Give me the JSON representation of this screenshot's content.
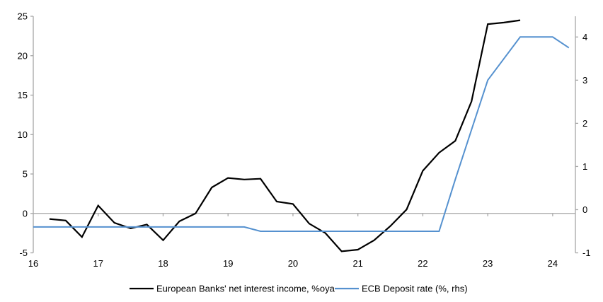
{
  "chart_data": {
    "type": "line",
    "title": "",
    "grid": "off",
    "legend_position": "bottom-center",
    "background": "#ffffff",
    "axis_color": "#a6a6a6",
    "zero_line": true,
    "x_axis": {
      "min": 16,
      "max": 24.35,
      "tick_values": [
        16,
        17,
        18,
        19,
        20,
        21,
        22,
        23,
        24
      ],
      "tick_labels": [
        "16",
        "17",
        "18",
        "19",
        "20",
        "21",
        "22",
        "23",
        "24"
      ]
    },
    "left_axis": {
      "min": -5,
      "max": 25,
      "tick_values": [
        -5,
        0,
        5,
        10,
        15,
        20,
        25
      ],
      "tick_labels": [
        "-5",
        "0",
        "5",
        "10",
        "15",
        "20",
        "25"
      ]
    },
    "right_axis": {
      "min": -1,
      "max": 4.48,
      "tick_values": [
        -1,
        0,
        1,
        2,
        3,
        4
      ],
      "tick_labels": [
        "-1",
        "0",
        "1",
        "2",
        "3",
        "4"
      ]
    },
    "series": [
      {
        "name": "European Banks' net interest income, %oya",
        "axis": "left",
        "color": "#000000",
        "stroke_width": 2.2,
        "x": [
          16.25,
          16.5,
          16.75,
          17.0,
          17.25,
          17.5,
          17.75,
          18.0,
          18.25,
          18.5,
          18.75,
          19.0,
          19.25,
          19.5,
          19.75,
          20.0,
          20.25,
          20.5,
          20.75,
          21.0,
          21.25,
          21.5,
          21.75,
          22.0,
          22.25,
          22.5,
          22.75,
          23.0,
          23.25,
          23.5
        ],
        "y": [
          -0.7,
          -0.9,
          -3.0,
          1.0,
          -1.2,
          -1.9,
          -1.4,
          -3.4,
          -1.0,
          0.0,
          3.3,
          4.5,
          4.3,
          4.4,
          1.5,
          1.2,
          -1.3,
          -2.5,
          -4.8,
          -4.6,
          -3.4,
          -1.6,
          0.5,
          5.4,
          7.7,
          9.2,
          14.2,
          24.0,
          24.2,
          24.5
        ]
      },
      {
        "name": "ECB Deposit rate (%, rhs)",
        "axis": "right",
        "color": "#5591cf",
        "stroke_width": 2,
        "x": [
          16.0,
          16.25,
          16.5,
          16.75,
          17.0,
          17.25,
          17.5,
          17.75,
          18.0,
          18.25,
          18.5,
          18.75,
          19.0,
          19.25,
          19.5,
          19.75,
          20.0,
          20.25,
          20.5,
          20.75,
          21.0,
          21.25,
          21.5,
          21.75,
          22.0,
          22.25,
          22.5,
          22.75,
          23.0,
          23.25,
          23.5,
          23.75,
          24.0,
          24.25
        ],
        "y": [
          -0.4,
          -0.4,
          -0.4,
          -0.4,
          -0.4,
          -0.4,
          -0.4,
          -0.4,
          -0.4,
          -0.4,
          -0.4,
          -0.4,
          -0.4,
          -0.4,
          -0.5,
          -0.5,
          -0.5,
          -0.5,
          -0.5,
          -0.5,
          -0.5,
          -0.5,
          -0.5,
          -0.5,
          -0.5,
          -0.5,
          0.7,
          1.85,
          3.0,
          3.5,
          4.0,
          4.0,
          4.0,
          3.75
        ]
      }
    ]
  }
}
